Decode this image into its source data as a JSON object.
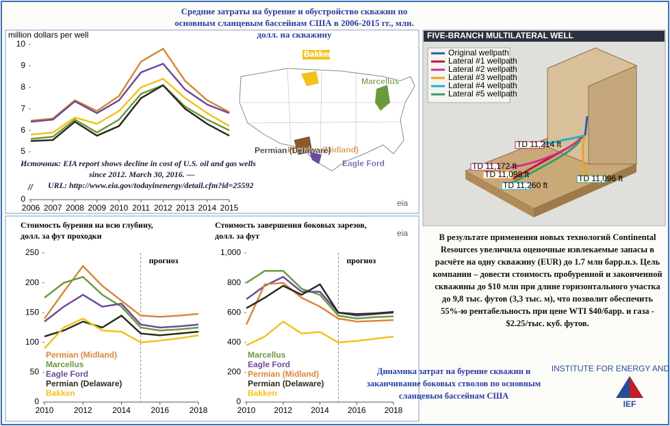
{
  "title": "Средние затраты на бурение и обустройство скважин по основным сланцевым бассейнам США в 2006-2015 гг., млн. долл. на скважину",
  "source": [
    "Источник: EIA report shows decline in cost of U.S. oil and gas wells",
    "since 2012. March 30, 2016. —",
    "URL: http://www.eia.gov/todayinenergy/detail.cfm?id=25592"
  ],
  "logo": "eia",
  "chart_data": [
    {
      "type": "line",
      "y_label": "million dollars per well",
      "x": [
        2006,
        2007,
        2008,
        2009,
        2010,
        2011,
        2012,
        2013,
        2014,
        2015
      ],
      "xlim": [
        2006,
        2015
      ],
      "xticks": [
        2006,
        2007,
        2008,
        2009,
        2010,
        2011,
        2012,
        2013,
        2014,
        2015
      ],
      "ylim": [
        5,
        10
      ],
      "yticks": [
        0,
        5,
        6,
        7,
        8,
        9,
        10
      ],
      "axis_break": true,
      "series": [
        {
          "name": "Permian (Midland)",
          "color": "#d7873a",
          "values": [
            6.45,
            6.55,
            7.4,
            6.9,
            7.6,
            9.2,
            9.8,
            8.3,
            7.4,
            6.85
          ]
        },
        {
          "name": "Eagle Ford",
          "color": "#6a4a9c",
          "values": [
            6.4,
            6.5,
            7.35,
            6.8,
            7.4,
            8.7,
            9.1,
            7.9,
            7.2,
            6.8
          ]
        },
        {
          "name": "Bakken",
          "color": "#f2c21b",
          "values": [
            5.8,
            5.9,
            6.6,
            6.3,
            6.9,
            8.0,
            8.4,
            7.5,
            6.8,
            6.2
          ]
        },
        {
          "name": "Marcellus",
          "color": "#6a9a3c",
          "values": [
            5.6,
            5.7,
            6.5,
            5.9,
            6.5,
            7.7,
            8.1,
            7.1,
            6.5,
            6.0
          ]
        },
        {
          "name": "Permian (Delaware)",
          "color": "#2a2a1a",
          "values": [
            5.5,
            5.55,
            6.4,
            5.75,
            6.2,
            7.5,
            8.1,
            7.0,
            6.3,
            5.75
          ]
        }
      ]
    },
    {
      "type": "line",
      "title": [
        "Стоимость бурения на всю глубину,",
        "долл. за фут проходки"
      ],
      "x": [
        2010,
        2011,
        2012,
        2013,
        2014,
        2015,
        2016,
        2017,
        2018
      ],
      "xlim": [
        2010,
        2018
      ],
      "xticks": [
        2010,
        2012,
        2014,
        2016,
        2018
      ],
      "ylim": [
        0,
        250
      ],
      "yticks": [
        0,
        50,
        100,
        150,
        200,
        250
      ],
      "forecast_x": 2015,
      "annotation": "прогноз",
      "series": [
        {
          "name": "Permian (Midland)",
          "color": "#d7873a",
          "values": [
            140,
            185,
            228,
            195,
            170,
            145,
            143,
            145,
            148
          ]
        },
        {
          "name": "Marcellus",
          "color": "#6a9a3c",
          "values": [
            175,
            200,
            210,
            180,
            160,
            125,
            120,
            122,
            125
          ]
        },
        {
          "name": "Eagle Ford",
          "color": "#6a4a9c",
          "values": [
            135,
            160,
            180,
            160,
            165,
            130,
            125,
            127,
            130
          ]
        },
        {
          "name": "Permian (Delaware)",
          "color": "#2a2a1a",
          "values": [
            110,
            120,
            135,
            125,
            145,
            115,
            112,
            115,
            118
          ]
        },
        {
          "name": "Bakken",
          "color": "#f2c21b",
          "values": [
            90,
            125,
            140,
            120,
            118,
            100,
            103,
            107,
            112
          ]
        }
      ]
    },
    {
      "type": "line",
      "title": [
        "Стоимость завершения боковых зарезов,",
        "долл. за фут"
      ],
      "x": [
        2010,
        2011,
        2012,
        2013,
        2014,
        2015,
        2016,
        2017,
        2018
      ],
      "xlim": [
        2010,
        2018
      ],
      "xticks": [
        2010,
        2012,
        2014,
        2016,
        2018
      ],
      "ylim": [
        0,
        1000
      ],
      "yticks": [
        0,
        200,
        400,
        600,
        800,
        {
          "value": 1000,
          "label": "1,000"
        }
      ],
      "forecast_x": 2015,
      "annotation": "прогноз",
      "series": [
        {
          "name": "Marcellus",
          "color": "#6a9a3c",
          "values": [
            800,
            880,
            880,
            760,
            720,
            580,
            560,
            570,
            575
          ]
        },
        {
          "name": "Eagle Ford",
          "color": "#6a4a9c",
          "values": [
            690,
            780,
            840,
            740,
            740,
            600,
            580,
            590,
            600
          ]
        },
        {
          "name": "Permian (Midland)",
          "color": "#d7873a",
          "values": [
            520,
            790,
            800,
            700,
            640,
            560,
            540,
            545,
            550
          ]
        },
        {
          "name": "Permian (Delaware)",
          "color": "#2a2a1a",
          "values": [
            630,
            700,
            780,
            720,
            790,
            600,
            590,
            595,
            605
          ]
        },
        {
          "name": "Bakken",
          "color": "#f2c21b",
          "values": [
            380,
            440,
            540,
            460,
            470,
            400,
            410,
            425,
            440
          ]
        }
      ]
    }
  ],
  "well_diagram": {
    "title": "FIVE-BRANCH MULTILATERAL WELL",
    "legend": [
      "Original wellpath",
      "Lateral #1 wellpath",
      "Lateral #2 wellpath",
      "Lateral #3 wellpath",
      "Lateral #4 wellpath",
      "Lateral #5 wellpath"
    ],
    "td_labels": [
      "TD 11,214 ft",
      "TD 11,172 ft",
      "TD 11,098 ft",
      "TD 11,260 ft",
      "TD 11,096 ft"
    ]
  },
  "description": "В результате применения новых технологий Continental Resources увеличила оценочные извлекаемые запасы в расчёте на одну скважину (EUR) до 1.7 млн барр.н.э. Цель компании – довести стоимость пробуренной и законченной скважины до $10 млн при длине горизонтального участка до 9,8 тыс. футов (3,3 тыс. м), что позволит обеспечить 55%-ю рентабельность при цене WTI $40/барр. и газа - $2.25/тыс. куб. футов.",
  "caption": "Динамика затрат на бурение скважин и заканчивание боковых стволов по основным сланцевым бассейнам США",
  "ief": {
    "name": "IEF",
    "full": "INSTITUTE FOR ENERGY AND FINANCE"
  }
}
